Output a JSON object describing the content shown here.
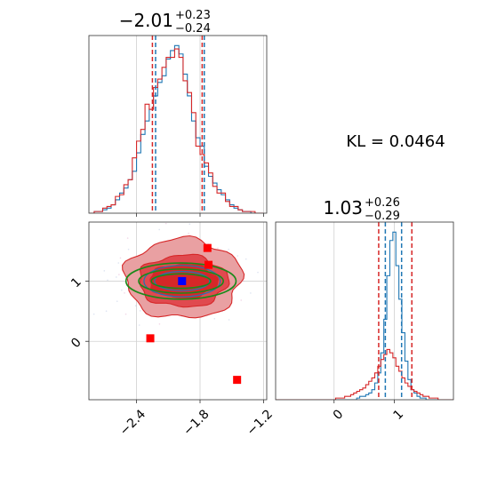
{
  "chart_data": [
    {
      "type": "histogram",
      "panel": "marginal-x",
      "title_main": "−2.01",
      "title_sup": "+0.23",
      "title_sub": "−0.24",
      "xlim": [
        -2.85,
        -1.17
      ],
      "bins_x": [
        -2.82,
        -2.78,
        -2.74,
        -2.7,
        -2.66,
        -2.62,
        -2.58,
        -2.54,
        -2.5,
        -2.46,
        -2.42,
        -2.38,
        -2.34,
        -2.3,
        -2.26,
        -2.22,
        -2.18,
        -2.14,
        -2.1,
        -2.06,
        -2.02,
        -1.98,
        -1.94,
        -1.9,
        -1.86,
        -1.82,
        -1.78,
        -1.74,
        -1.7,
        -1.66,
        -1.62,
        -1.58,
        -1.54,
        -1.5,
        -1.46,
        -1.42,
        -1.38,
        -1.34,
        -1.3,
        -1.26,
        -1.22
      ],
      "series": [
        {
          "color": "#1f77b4",
          "values": [
            0,
            0.01,
            0.01,
            0.02,
            0.03,
            0.05,
            0.08,
            0.12,
            0.15,
            0.2,
            0.25,
            0.36,
            0.47,
            0.55,
            0.62,
            0.7,
            0.78,
            0.82,
            0.92,
            0.97,
            1.0,
            0.95,
            0.83,
            0.7,
            0.55,
            0.45,
            0.4,
            0.28,
            0.22,
            0.18,
            0.14,
            0.11,
            0.08,
            0.05,
            0.03,
            0.02,
            0.01,
            0.01,
            0,
            0,
            0
          ]
        },
        {
          "color": "#d62728",
          "values": [
            0,
            0.01,
            0.01,
            0.03,
            0.04,
            0.05,
            0.1,
            0.11,
            0.17,
            0.2,
            0.33,
            0.43,
            0.5,
            0.65,
            0.62,
            0.75,
            0.8,
            0.87,
            0.93,
            0.93,
            0.98,
            0.93,
            0.79,
            0.72,
            0.6,
            0.4,
            0.35,
            0.3,
            0.24,
            0.16,
            0.12,
            0.12,
            0.07,
            0.04,
            0.04,
            0.02,
            0.01,
            0.01,
            0.01,
            0,
            0
          ]
        }
      ],
      "quantile_lines": [
        {
          "color": "#d62728",
          "x": [
            -2.25,
            -1.78
          ]
        },
        {
          "color": "#1f77b4",
          "x": [
            -2.22,
            -1.76
          ]
        }
      ],
      "ticks_x": [
        -2.4,
        -1.8,
        -1.2
      ]
    },
    {
      "type": "contour",
      "panel": "joint",
      "xlim": [
        -2.85,
        -1.17
      ],
      "ylim": [
        -0.97,
        1.98
      ],
      "xticks": [
        -2.4,
        -1.8,
        -1.2
      ],
      "xtick_labels": [
        "−2.4",
        "−1.8",
        "−1.2"
      ],
      "yticks": [
        0,
        1
      ],
      "ytick_labels": [
        "0",
        "1"
      ],
      "red_contours": [
        {
          "level": "outer",
          "fill": "#e9a0a2",
          "cx": -1.96,
          "cy": 1.04,
          "rx": 0.55,
          "ry": 0.66
        },
        {
          "level": "mid",
          "fill": "#e04a4f",
          "cx": -1.96,
          "cy": 1.0,
          "rx": 0.42,
          "ry": 0.43
        },
        {
          "level": "inner",
          "fill": "#d62728",
          "cx": -1.96,
          "cy": 1.0,
          "rx": 0.32,
          "ry": 0.28
        }
      ],
      "blue_contours": [
        {
          "cx": -1.97,
          "cy": 1.0,
          "rx": 0.36,
          "ry": 0.26
        },
        {
          "cx": -1.97,
          "cy": 1.0,
          "rx": 0.26,
          "ry": 0.16
        }
      ],
      "green_contours": [
        {
          "cx": -1.98,
          "cy": 1.0,
          "rx": 0.52,
          "ry": 0.3
        },
        {
          "cx": -1.98,
          "cy": 1.0,
          "rx": 0.4,
          "ry": 0.2
        },
        {
          "cx": -1.98,
          "cy": 1.0,
          "rx": 0.28,
          "ry": 0.12
        }
      ],
      "red_markers": [
        [
          -1.73,
          1.55
        ],
        [
          -2.27,
          0.05
        ],
        [
          -1.45,
          -0.64
        ],
        [
          -1.72,
          1.27
        ]
      ],
      "blue_marker": [
        -1.97,
        1.0
      ]
    },
    {
      "type": "histogram",
      "panel": "marginal-y",
      "title_main": "1.03",
      "title_sup": "+0.26",
      "title_sub": "−0.29",
      "xlim": [
        -0.97,
        1.98
      ],
      "bins_x": [
        -0.95,
        -0.9,
        -0.85,
        -0.8,
        -0.75,
        -0.7,
        -0.65,
        -0.6,
        -0.55,
        -0.5,
        -0.45,
        -0.4,
        -0.35,
        -0.3,
        -0.25,
        -0.2,
        -0.15,
        -0.1,
        -0.05,
        0.0,
        0.05,
        0.1,
        0.15,
        0.2,
        0.25,
        0.3,
        0.35,
        0.4,
        0.45,
        0.5,
        0.55,
        0.6,
        0.65,
        0.7,
        0.75,
        0.8,
        0.85,
        0.9,
        0.95,
        1.0,
        1.05,
        1.1,
        1.15,
        1.2,
        1.25,
        1.3,
        1.35,
        1.4,
        1.45,
        1.5,
        1.55,
        1.6,
        1.65,
        1.7,
        1.75,
        1.8,
        1.85,
        1.9,
        1.95
      ],
      "series": [
        {
          "color": "#1f77b4",
          "values": [
            0,
            0,
            0,
            0,
            0,
            0,
            0,
            0,
            0,
            0,
            0,
            0,
            0,
            0,
            0,
            0,
            0,
            0,
            0,
            0,
            0,
            0,
            0,
            0,
            0,
            0,
            0,
            0.01,
            0.02,
            0.02,
            0.03,
            0.04,
            0.06,
            0.1,
            0.16,
            0.28,
            0.48,
            0.74,
            0.95,
            1.0,
            0.8,
            0.6,
            0.4,
            0.23,
            0.12,
            0.06,
            0.04,
            0.02,
            0.01,
            0.01,
            0,
            0,
            0,
            0,
            0,
            0,
            0,
            0,
            0
          ]
        },
        {
          "color": "#d62728",
          "values": [
            0,
            0,
            0,
            0,
            0,
            0,
            0,
            0,
            0,
            0,
            0,
            0,
            0,
            0,
            0,
            0,
            0,
            0,
            0,
            0,
            0.01,
            0.01,
            0.01,
            0.02,
            0.02,
            0.03,
            0.04,
            0.05,
            0.06,
            0.07,
            0.09,
            0.11,
            0.13,
            0.16,
            0.2,
            0.24,
            0.27,
            0.3,
            0.28,
            0.25,
            0.2,
            0.17,
            0.13,
            0.1,
            0.08,
            0.06,
            0.05,
            0.04,
            0.03,
            0.02,
            0.02,
            0.01,
            0.01,
            0.01,
            0,
            0,
            0,
            0,
            0
          ]
        }
      ],
      "quantile_lines": [
        {
          "color": "#d62728",
          "x": [
            0.74,
            1.29
          ]
        },
        {
          "color": "#1f77b4",
          "x": [
            0.85,
            1.12
          ]
        }
      ],
      "xticks": [
        0,
        1
      ],
      "xtick_labels": [
        "0",
        "1"
      ]
    }
  ],
  "annotation": {
    "kl_text": "KL = 0.0464"
  }
}
